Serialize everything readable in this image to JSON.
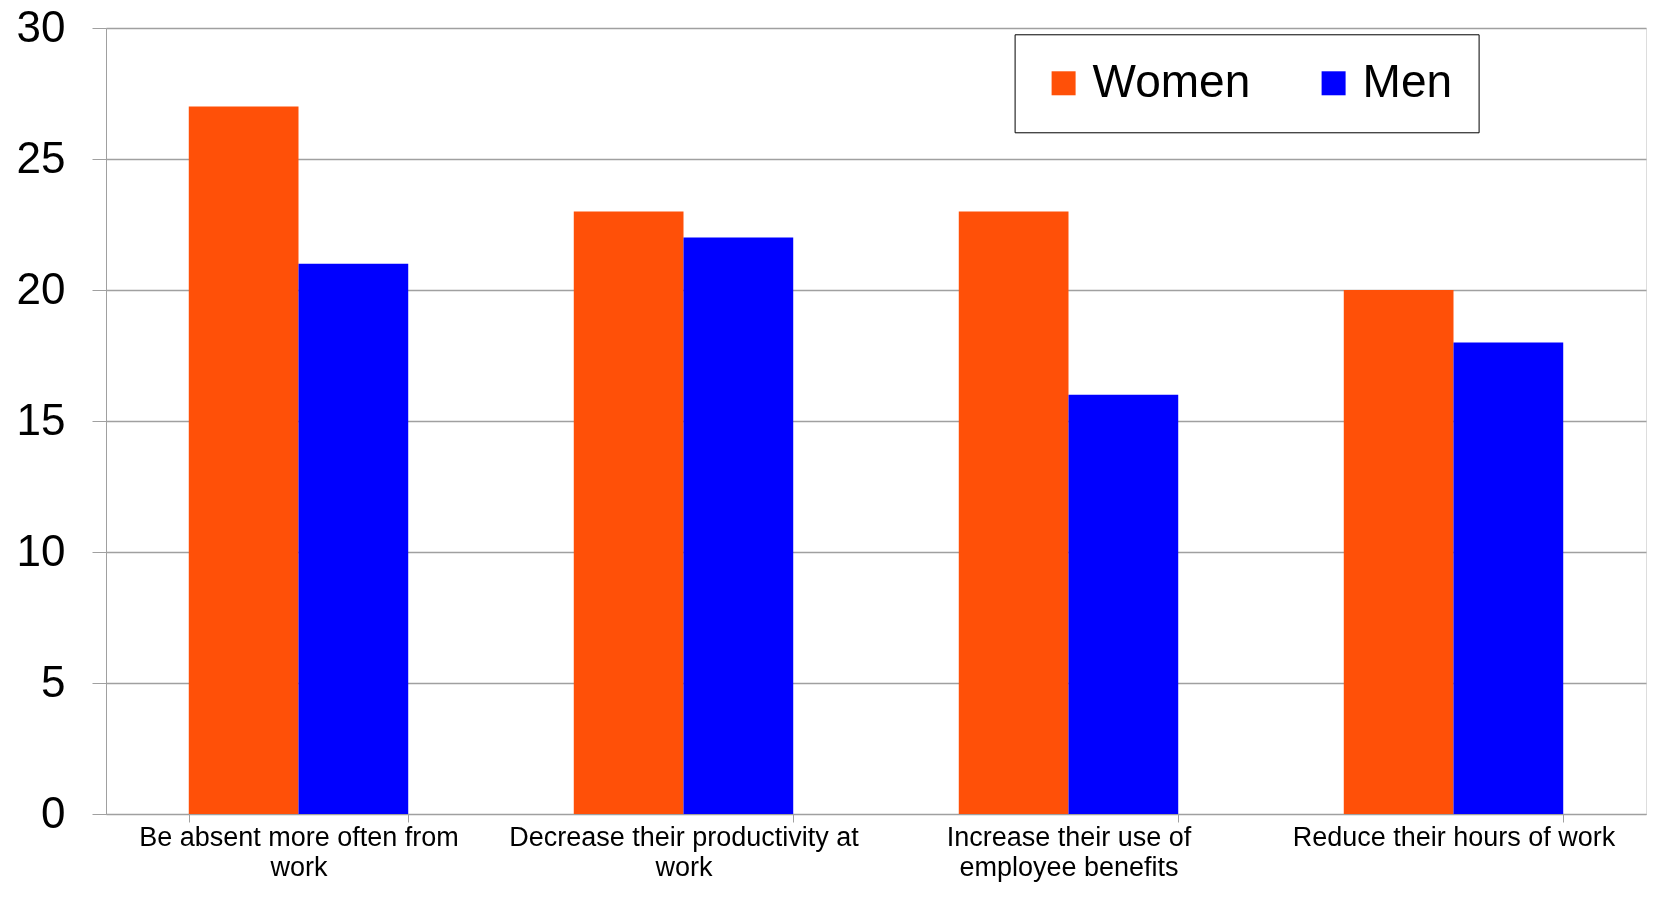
{
  "chart_data": {
    "type": "bar",
    "categories": [
      "Be absent more often from work",
      "Decrease their productivity at work",
      "Increase their use of employee benefits",
      "Reduce their hours of work"
    ],
    "series": [
      {
        "name": "Women",
        "color": "#ff5008",
        "values": [
          27,
          23,
          23,
          20
        ]
      },
      {
        "name": "Men",
        "color": "#0000ff",
        "values": [
          21,
          22,
          16,
          18
        ]
      }
    ],
    "ylim": [
      0,
      30
    ],
    "yticks": [
      0,
      5,
      10,
      15,
      20,
      25,
      30
    ],
    "grid": "y",
    "legend": "top right"
  }
}
